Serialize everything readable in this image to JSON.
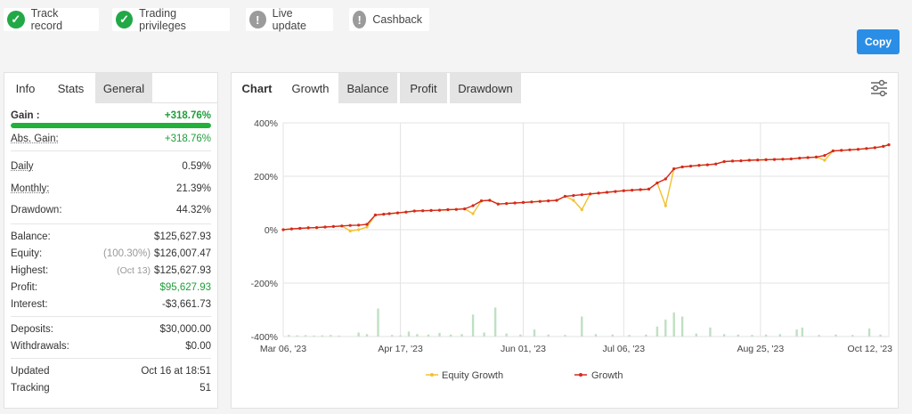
{
  "chips": [
    {
      "label": "Track record",
      "status": "ok",
      "glyph": "✓"
    },
    {
      "label": "Trading privileges",
      "status": "ok",
      "glyph": "✓"
    },
    {
      "label": "Live update",
      "status": "warn",
      "glyph": "!"
    },
    {
      "label": "Cashback",
      "status": "warn",
      "glyph": "!"
    }
  ],
  "copy_label": "Copy",
  "left_tabs": [
    "Info",
    "Stats",
    "General"
  ],
  "stats": {
    "gain_label": "Gain :",
    "gain_value": "+318.76%",
    "gain_progress": 1.0,
    "abs_gain_label": "Abs. Gain:",
    "abs_gain_value": "+318.76%",
    "daily_label": "Daily",
    "daily_value": "0.59%",
    "monthly_label": "Monthly:",
    "monthly_value": "21.39%",
    "drawdown_label": "Drawdown:",
    "drawdown_value": "44.32%",
    "balance_label": "Balance:",
    "balance_value": "$125,627.93",
    "equity_label": "Equity:",
    "equity_note": "(100.30%)",
    "equity_value": "$126,007.47",
    "highest_label": "Highest:",
    "highest_note": "(Oct 13)",
    "highest_value": "$125,627.93",
    "profit_label": "Profit:",
    "profit_value": "$95,627.93",
    "interest_label": "Interest:",
    "interest_value": "-$3,661.73",
    "deposits_label": "Deposits:",
    "deposits_value": "$30,000.00",
    "withdrawals_label": "Withdrawals:",
    "withdrawals_value": "$0.00",
    "updated_label": "Updated",
    "updated_value": "Oct 16 at 18:51",
    "tracking_label": "Tracking",
    "tracking_value": "51"
  },
  "right_tabs": [
    "Chart",
    "Growth",
    "Balance",
    "Profit",
    "Drawdown"
  ],
  "settings_icon": "sliders-icon",
  "colors": {
    "equity": "#f2c12e",
    "growth": "#d42a1e",
    "bars": "#bfe0c3",
    "accent": "#2b8ee6",
    "ok": "#22a846"
  },
  "chart_data": {
    "type": "line",
    "ylim": [
      -400,
      400
    ],
    "yticks": [
      "400%",
      "200%",
      "0%",
      "-200%",
      "-400%"
    ],
    "xticks": [
      "Mar 06, '23",
      "Apr 17, '23",
      "Jun 01, '23",
      "Jul 06, '23",
      "Aug 25, '23",
      "Oct 12, '23"
    ],
    "legend": [
      "Equity Growth",
      "Growth"
    ],
    "series": [
      {
        "name": "Growth",
        "x": [
          0,
          3,
          6,
          9,
          12,
          15,
          18,
          21,
          24,
          27,
          30,
          33,
          36,
          38,
          41,
          44,
          47,
          50,
          53,
          56,
          59,
          62,
          65,
          68,
          71,
          74,
          77,
          80,
          83,
          86,
          89,
          92,
          95,
          98,
          101,
          104,
          107,
          110,
          113,
          116,
          119,
          122,
          125,
          128,
          131,
          134,
          137,
          140,
          143,
          146,
          149,
          152,
          155,
          158,
          161,
          164,
          167,
          170,
          173,
          176,
          179,
          182,
          185,
          188,
          191,
          194,
          197,
          200,
          203,
          206,
          209,
          212,
          215,
          217
        ],
        "values": [
          0,
          3,
          5,
          7,
          8,
          10,
          12,
          14,
          16,
          17,
          20,
          55,
          58,
          60,
          63,
          66,
          70,
          71,
          72,
          73,
          75,
          76,
          78,
          90,
          108,
          110,
          96,
          98,
          100,
          102,
          104,
          106,
          108,
          110,
          125,
          128,
          131,
          134,
          137,
          140,
          143,
          146,
          148,
          150,
          152,
          175,
          190,
          228,
          235,
          238,
          241,
          243,
          246,
          255,
          257,
          258,
          260,
          261,
          262,
          263,
          264,
          265,
          268,
          270,
          272,
          278,
          295,
          297,
          299,
          301,
          304,
          307,
          312,
          318
        ]
      },
      {
        "name": "Equity Growth",
        "x": [
          0,
          3,
          6,
          9,
          12,
          15,
          18,
          21,
          24,
          27,
          30,
          33,
          36,
          38,
          41,
          44,
          47,
          50,
          53,
          56,
          59,
          62,
          65,
          68,
          71,
          74,
          77,
          80,
          83,
          86,
          89,
          92,
          95,
          98,
          101,
          104,
          107,
          110,
          113,
          116,
          119,
          122,
          125,
          128,
          131,
          134,
          137,
          140,
          143,
          146,
          149,
          152,
          155,
          158,
          161,
          164,
          167,
          170,
          173,
          176,
          179,
          182,
          185,
          188,
          191,
          194,
          197,
          200,
          203,
          206,
          209,
          212,
          215,
          217
        ],
        "values": [
          0,
          3,
          5,
          7,
          8,
          10,
          12,
          14,
          -5,
          0,
          10,
          55,
          58,
          60,
          63,
          66,
          70,
          71,
          72,
          73,
          75,
          76,
          78,
          60,
          108,
          110,
          96,
          98,
          100,
          102,
          104,
          106,
          108,
          110,
          125,
          110,
          75,
          134,
          137,
          140,
          143,
          146,
          148,
          150,
          152,
          175,
          90,
          228,
          235,
          238,
          241,
          243,
          246,
          255,
          257,
          258,
          260,
          261,
          262,
          263,
          264,
          265,
          268,
          270,
          272,
          260,
          295,
          297,
          299,
          301,
          304,
          307,
          312,
          318
        ]
      }
    ],
    "bars": [
      {
        "x": 2,
        "v": 8
      },
      {
        "x": 5,
        "v": 6
      },
      {
        "x": 8,
        "v": 7
      },
      {
        "x": 11,
        "v": 5
      },
      {
        "x": 14,
        "v": 6
      },
      {
        "x": 17,
        "v": 8
      },
      {
        "x": 20,
        "v": 5
      },
      {
        "x": 27,
        "v": 20
      },
      {
        "x": 30,
        "v": 12
      },
      {
        "x": 34,
        "v": 140
      },
      {
        "x": 39,
        "v": 8
      },
      {
        "x": 42,
        "v": 6
      },
      {
        "x": 45,
        "v": 25
      },
      {
        "x": 48,
        "v": 12
      },
      {
        "x": 52,
        "v": 10
      },
      {
        "x": 56,
        "v": 18
      },
      {
        "x": 60,
        "v": 10
      },
      {
        "x": 64,
        "v": 12
      },
      {
        "x": 68,
        "v": 110
      },
      {
        "x": 72,
        "v": 20
      },
      {
        "x": 76,
        "v": 145
      },
      {
        "x": 80,
        "v": 15
      },
      {
        "x": 85,
        "v": 10
      },
      {
        "x": 90,
        "v": 35
      },
      {
        "x": 95,
        "v": 10
      },
      {
        "x": 101,
        "v": 8
      },
      {
        "x": 107,
        "v": 100
      },
      {
        "x": 112,
        "v": 12
      },
      {
        "x": 118,
        "v": 10
      },
      {
        "x": 124,
        "v": 8
      },
      {
        "x": 130,
        "v": 10
      },
      {
        "x": 134,
        "v": 50
      },
      {
        "x": 137,
        "v": 85
      },
      {
        "x": 140,
        "v": 120
      },
      {
        "x": 143,
        "v": 100
      },
      {
        "x": 148,
        "v": 15
      },
      {
        "x": 153,
        "v": 45
      },
      {
        "x": 158,
        "v": 12
      },
      {
        "x": 163,
        "v": 10
      },
      {
        "x": 168,
        "v": 8
      },
      {
        "x": 173,
        "v": 10
      },
      {
        "x": 178,
        "v": 12
      },
      {
        "x": 184,
        "v": 35
      },
      {
        "x": 186,
        "v": 45
      },
      {
        "x": 192,
        "v": 8
      },
      {
        "x": 198,
        "v": 10
      },
      {
        "x": 204,
        "v": 8
      },
      {
        "x": 210,
        "v": 40
      },
      {
        "x": 214,
        "v": 10
      }
    ]
  }
}
